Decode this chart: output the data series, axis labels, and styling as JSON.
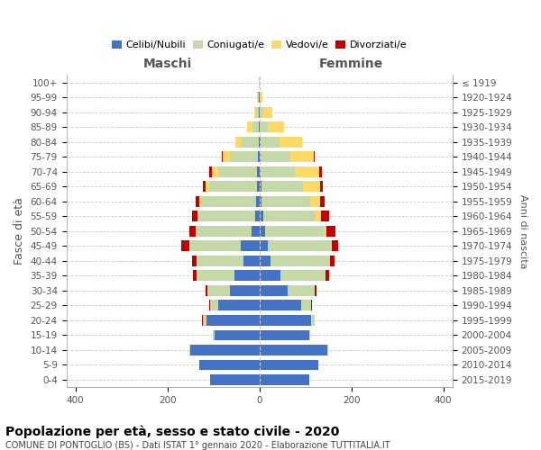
{
  "age_groups_bottom_to_top": [
    "0-4",
    "5-9",
    "10-14",
    "15-19",
    "20-24",
    "25-29",
    "30-34",
    "35-39",
    "40-44",
    "45-49",
    "50-54",
    "55-59",
    "60-64",
    "65-69",
    "70-74",
    "75-79",
    "80-84",
    "85-89",
    "90-94",
    "95-99",
    "100+"
  ],
  "birth_years_bottom_to_top": [
    "2015-2019",
    "2010-2014",
    "2005-2009",
    "2000-2004",
    "1995-1999",
    "1990-1994",
    "1985-1989",
    "1980-1984",
    "1975-1979",
    "1970-1974",
    "1965-1969",
    "1960-1964",
    "1955-1959",
    "1950-1954",
    "1945-1949",
    "1940-1944",
    "1935-1939",
    "1930-1934",
    "1925-1929",
    "1920-1924",
    "≤ 1919"
  ],
  "males_celibi": [
    108,
    130,
    150,
    98,
    115,
    90,
    65,
    55,
    35,
    40,
    18,
    10,
    8,
    5,
    5,
    3,
    2,
    1,
    1,
    1,
    0
  ],
  "males_coniugati": [
    0,
    0,
    2,
    3,
    8,
    18,
    48,
    82,
    102,
    112,
    118,
    122,
    118,
    105,
    85,
    62,
    38,
    15,
    6,
    2,
    1
  ],
  "males_vedovi": [
    0,
    0,
    0,
    0,
    0,
    0,
    0,
    0,
    0,
    1,
    2,
    3,
    5,
    8,
    14,
    14,
    12,
    10,
    5,
    2,
    0
  ],
  "males_divorziati": [
    0,
    0,
    0,
    0,
    1,
    2,
    5,
    8,
    10,
    17,
    14,
    12,
    8,
    5,
    5,
    2,
    0,
    0,
    0,
    0,
    0
  ],
  "females_nubili": [
    108,
    128,
    148,
    108,
    112,
    90,
    62,
    45,
    25,
    18,
    12,
    8,
    5,
    4,
    3,
    2,
    2,
    1,
    0,
    0,
    0
  ],
  "females_coniugate": [
    0,
    0,
    2,
    3,
    8,
    22,
    58,
    98,
    128,
    138,
    128,
    115,
    105,
    90,
    75,
    65,
    42,
    18,
    8,
    1,
    0
  ],
  "females_vedove": [
    0,
    0,
    0,
    0,
    0,
    0,
    0,
    0,
    1,
    2,
    5,
    10,
    22,
    38,
    52,
    52,
    48,
    35,
    20,
    5,
    1
  ],
  "females_divorziate": [
    0,
    0,
    0,
    0,
    1,
    2,
    4,
    8,
    10,
    14,
    20,
    18,
    10,
    5,
    5,
    2,
    0,
    0,
    0,
    0,
    0
  ],
  "color_celibi": "#4472c4",
  "color_coniugati": "#c5d9a8",
  "color_vedovi": "#ffd966",
  "color_divorziati": "#c00000",
  "xlim": 420,
  "title": "Popolazione per età, sesso e stato civile - 2020",
  "subtitle": "COMUNE DI PONTOGLIO (BS) - Dati ISTAT 1° gennaio 2020 - Elaborazione TUTTITALIA.IT",
  "ylabel_left": "Fasce di età",
  "ylabel_right": "Anni di nascita",
  "xlabel_maschi": "Maschi",
  "xlabel_femmine": "Femmine",
  "legend_labels": [
    "Celibi/Nubili",
    "Coniugati/e",
    "Vedovi/e",
    "Divorziati/e"
  ],
  "xticks": [
    -400,
    -200,
    0,
    200,
    400
  ],
  "bar_height": 0.72,
  "bg_color": "#ffffff",
  "grid_color": "#cccccc",
  "spine_color": "#aaaaaa",
  "tick_label_color": "#555555",
  "axis_label_color": "#555555",
  "header_color": "#555555",
  "title_fontsize": 10,
  "subtitle_fontsize": 7,
  "tick_fontsize": 7.5,
  "legend_fontsize": 8,
  "header_fontsize": 10
}
